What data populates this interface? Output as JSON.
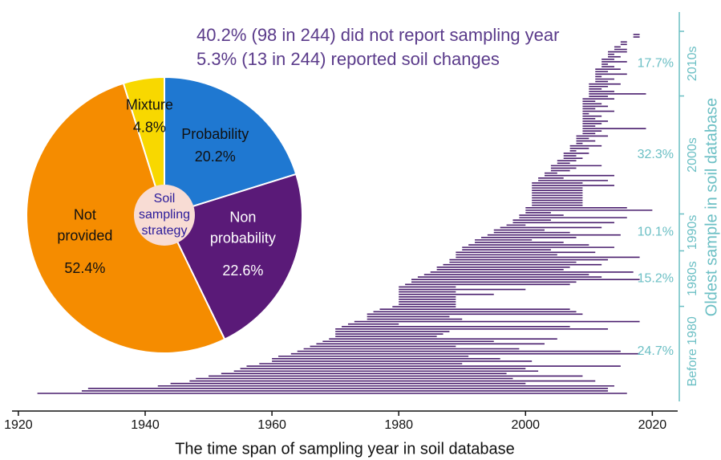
{
  "chart_data": {
    "type": "span",
    "xlabel": "The time span of sampling year in soil database",
    "y2label": "Oldest sample in soil database",
    "annotations": [
      "40.2% (98 in 244) did not report sampling year",
      "5.3% (13 in 244) reported soil changes"
    ],
    "xlim": [
      1919,
      2024
    ],
    "xticks": [
      1920,
      1940,
      1960,
      1980,
      2000,
      2020
    ],
    "color": "#4a1f6e",
    "axis_color": "#6bbfc4",
    "start": [
      1923,
      1930,
      1931,
      1942,
      1944,
      1947,
      1948,
      1950,
      1952,
      1954,
      1955,
      1956,
      1958,
      1960,
      1960,
      1961,
      1963,
      1964,
      1965,
      1966,
      1967,
      1968,
      1969,
      1970,
      1970,
      1970,
      1970,
      1971,
      1972,
      1973,
      1975,
      1975,
      1975,
      1976,
      1977,
      1979,
      1980,
      1980,
      1980,
      1980,
      1980,
      1980,
      1980,
      1980,
      1981,
      1982,
      1982,
      1983,
      1984,
      1985,
      1986,
      1986,
      1987,
      1988,
      1988,
      1989,
      1989,
      1989,
      1990,
      1990,
      1991,
      1992,
      1992,
      1993,
      1994,
      1995,
      1995,
      1996,
      1997,
      1998,
      1998,
      1999,
      1999,
      2000,
      2000,
      2000,
      2001,
      2001,
      2001,
      2001,
      2001,
      2001,
      2001,
      2001,
      2001,
      2001,
      2002,
      2002,
      2003,
      2003,
      2004,
      2004,
      2004,
      2005,
      2005,
      2006,
      2006,
      2006,
      2007,
      2007,
      2007,
      2008,
      2008,
      2008,
      2008,
      2009,
      2009,
      2009,
      2009,
      2009,
      2009,
      2009,
      2009,
      2009,
      2009,
      2009,
      2009,
      2009,
      2009,
      2009,
      2010,
      2010,
      2010,
      2010,
      2010,
      2010,
      2011,
      2011,
      2011,
      2011,
      2011,
      2011,
      2012,
      2012,
      2012,
      2012,
      2013,
      2013,
      2013,
      2014,
      2014,
      2015,
      2015,
      2016,
      2017,
      2017
    ],
    "end": [
      2016,
      2013,
      2013,
      2014,
      2000,
      2011,
      1998,
      2009,
      1997,
      2002,
      2000,
      2015,
      1990,
      2001,
      1996,
      1991,
      2018,
      2015,
      1999,
      1989,
      2003,
      1995,
      2005,
      1986,
      1987,
      1988,
      2013,
      2007,
      1980,
      2018,
      1990,
      1988,
      2009,
      2008,
      2007,
      1989,
      1989,
      1989,
      1989,
      1989,
      1995,
      1989,
      2000,
      1989,
      2007,
      2008,
      2018,
      2012,
      2010,
      2017,
      2006,
      2007,
      2012,
      2008,
      2013,
      2018,
      2005,
      2011,
      2004,
      2014,
      2010,
      2006,
      2001,
      2008,
      2015,
      2007,
      2003,
      2012,
      2000,
      2014,
      2004,
      2016,
      2006,
      2004,
      2020,
      2016,
      2009,
      2009,
      2009,
      2009,
      2009,
      2009,
      2009,
      2009,
      2014,
      2009,
      2013,
      2006,
      2014,
      2005,
      2007,
      2008,
      2012,
      2007,
      2008,
      2009,
      2008,
      2010,
      2008,
      2010,
      2012,
      2009,
      2011,
      2010,
      2013,
      2011,
      2012,
      2019,
      2011,
      2012,
      2013,
      2011,
      2012,
      2010,
      2014,
      2011,
      2013,
      2012,
      2011,
      2014,
      2013,
      2019,
      2014,
      2012,
      2013,
      2015,
      2013,
      2014,
      2012,
      2016,
      2013,
      2015,
      2014,
      2013,
      2016,
      2014,
      2015,
      2014,
      2016,
      2016,
      2015,
      2016,
      2016,
      2016,
      2018,
      2018
    ],
    "groups": [
      "Before 1980",
      "1980s",
      "1990s",
      "2000s",
      "2010s"
    ],
    "group_shares": [
      24.7,
      15.2,
      10.1,
      32.3,
      17.7
    ],
    "group_share_labels": [
      "24.7%",
      "15.2%",
      "10.1%",
      "32.3%",
      "17.7%"
    ],
    "pie": {
      "type": "pie",
      "center_label": "Soil sampling strategy",
      "categories": [
        "Probability",
        "Non probability",
        "Not provided",
        "Mixture"
      ],
      "values": [
        20.2,
        22.6,
        52.4,
        4.8
      ],
      "value_labels": [
        "20.2%",
        "22.6%",
        "52.4%",
        "4.8%"
      ],
      "colors": [
        "#1f78d1",
        "#5a1a78",
        "#f58c00",
        "#f8d800"
      ],
      "label_colors": [
        "#111111",
        "#ffffff",
        "#111111",
        "#111111"
      ],
      "center_color": "#f8dcd4",
      "center_text_color": "#2a1a9a"
    }
  }
}
